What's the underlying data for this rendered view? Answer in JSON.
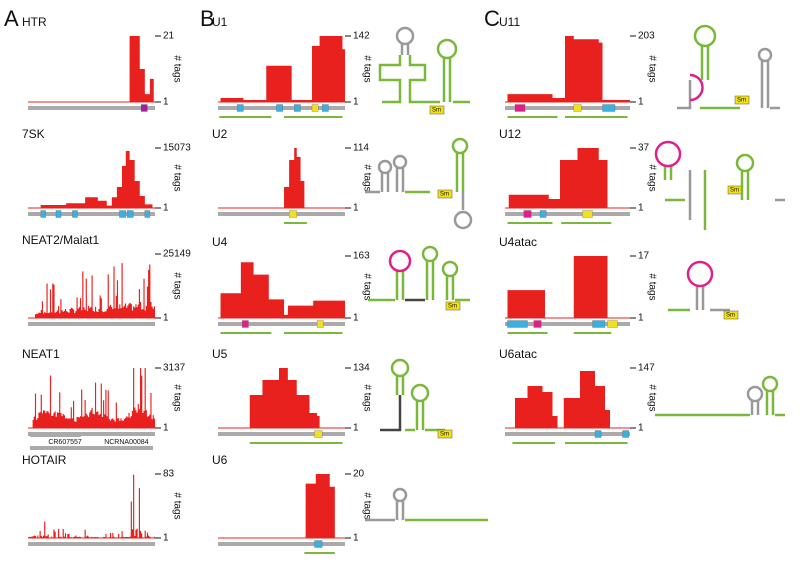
{
  "panel_letters": [
    "A",
    "B",
    "C"
  ],
  "axis_label": "# tags",
  "sm_label": "Sm",
  "gene_labels": [
    "CR607557",
    "NCRNA00084"
  ],
  "tracks": [
    {
      "name": "HTR",
      "max": 21,
      "min": 1
    },
    {
      "name": "7SK",
      "max": 15073,
      "min": 1
    },
    {
      "name": "NEAT2/Malat1",
      "max": 25149,
      "min": 1
    },
    {
      "name": "NEAT1",
      "max": 3137,
      "min": 1
    },
    {
      "name": "HOTAIR",
      "max": 83,
      "min": 1
    },
    {
      "name": "U1",
      "max": 142,
      "min": 1
    },
    {
      "name": "U2",
      "max": 114,
      "min": 1
    },
    {
      "name": "U4",
      "max": 163,
      "min": 1
    },
    {
      "name": "U5",
      "max": 134,
      "min": 1
    },
    {
      "name": "U6",
      "max": 20,
      "min": 1
    },
    {
      "name": "U11",
      "max": 203,
      "min": 1
    },
    {
      "name": "U12",
      "max": 37,
      "min": 1
    },
    {
      "name": "U4atac",
      "max": 17,
      "min": 1
    },
    {
      "name": "U6atac",
      "max": 147,
      "min": 1
    }
  ]
}
